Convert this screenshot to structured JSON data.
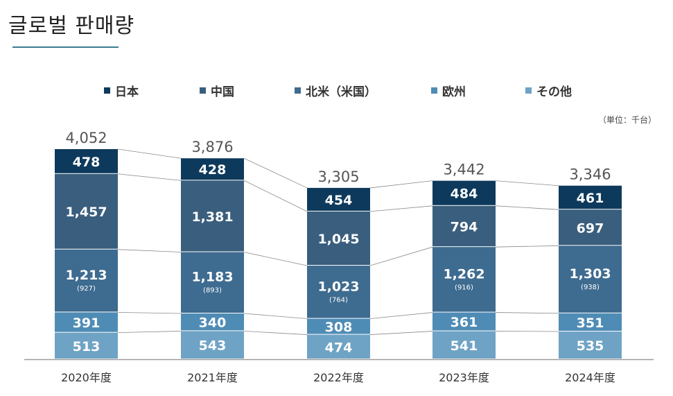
{
  "title": "글로벌 판매량",
  "unit_note": "（単位：千台）",
  "colors": {
    "title_rule": "#3b7b8c",
    "axis": "#9a9a9a",
    "connector": "#8a8a8a"
  },
  "chart_data": {
    "type": "bar",
    "stacked": true,
    "categories": [
      "2020年度",
      "2021年度",
      "2022年度",
      "2023年度",
      "2024年度"
    ],
    "totals": [
      "4,052",
      "3,876",
      "3,305",
      "3,442",
      "3,346"
    ],
    "ylim": [
      0,
      4400
    ],
    "grid": false,
    "legend_position": "top",
    "series": [
      {
        "name": "その他",
        "color": "#6fa3c5",
        "values": [
          513,
          543,
          474,
          541,
          535
        ]
      },
      {
        "name": "欧州",
        "color": "#4f8cb5",
        "values": [
          391,
          340,
          308,
          361,
          351
        ]
      },
      {
        "name": "北米（米国）",
        "color": "#3e6b90",
        "values": [
          1213,
          1183,
          1023,
          1262,
          1303
        ],
        "sub_values": [
          "(927)",
          "(893)",
          "(764)",
          "(916)",
          "(938)"
        ]
      },
      {
        "name": "中国",
        "color": "#3a5e7d",
        "values": [
          1457,
          1381,
          1045,
          794,
          697
        ]
      },
      {
        "name": "日本",
        "color": "#0d3a5c",
        "values": [
          478,
          428,
          454,
          484,
          461
        ]
      }
    ]
  }
}
